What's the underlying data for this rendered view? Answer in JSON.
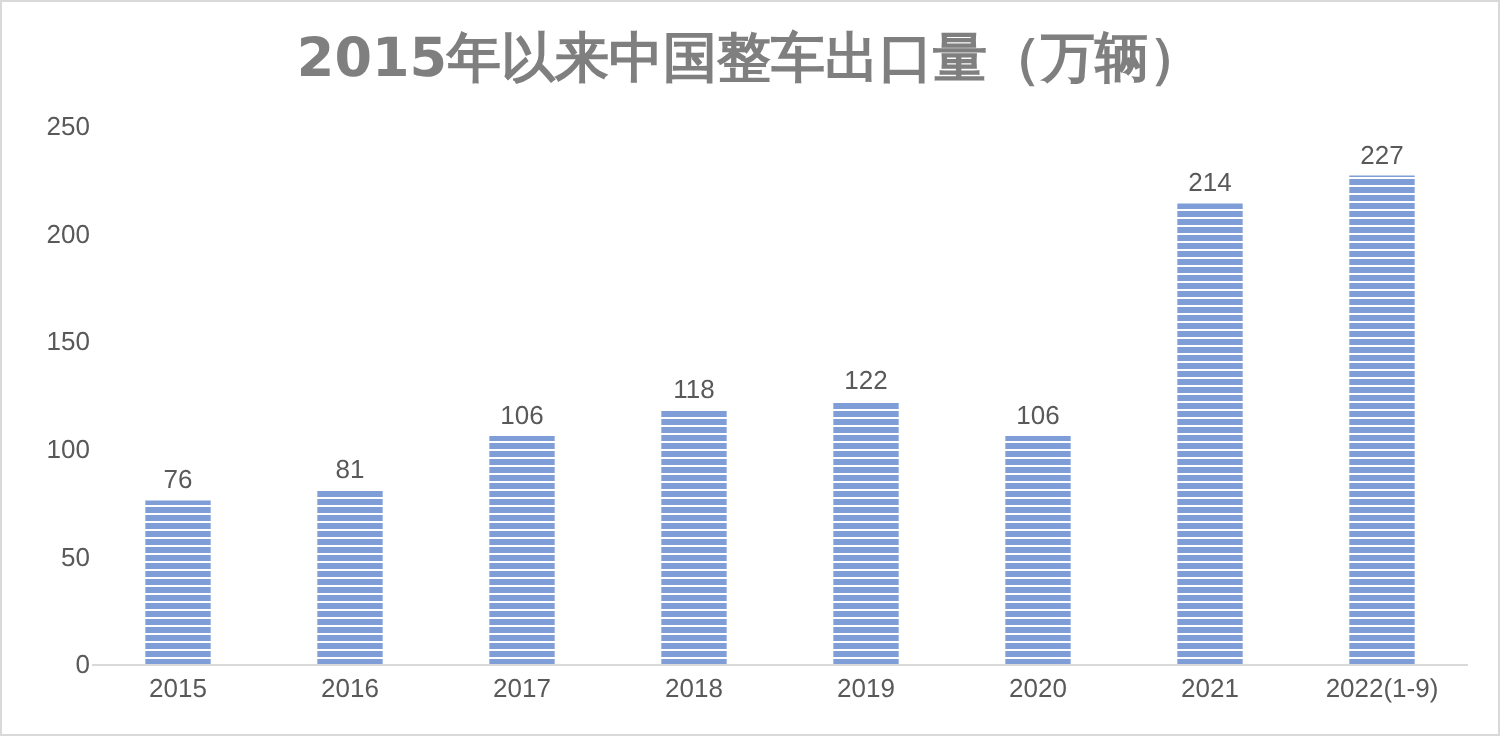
{
  "chart_data": {
    "type": "bar",
    "title": "2015年以来中国整车出口量（万辆）",
    "categories": [
      "2015",
      "2016",
      "2017",
      "2018",
      "2019",
      "2020",
      "2021",
      "2022(1-9)"
    ],
    "values": [
      76,
      81,
      106,
      118,
      122,
      106,
      214,
      227
    ],
    "color": "#7f9ed8",
    "ylim": [
      0,
      250
    ],
    "yticks": [
      0,
      50,
      100,
      150,
      200,
      250
    ],
    "grid": false,
    "data_labels": true
  }
}
